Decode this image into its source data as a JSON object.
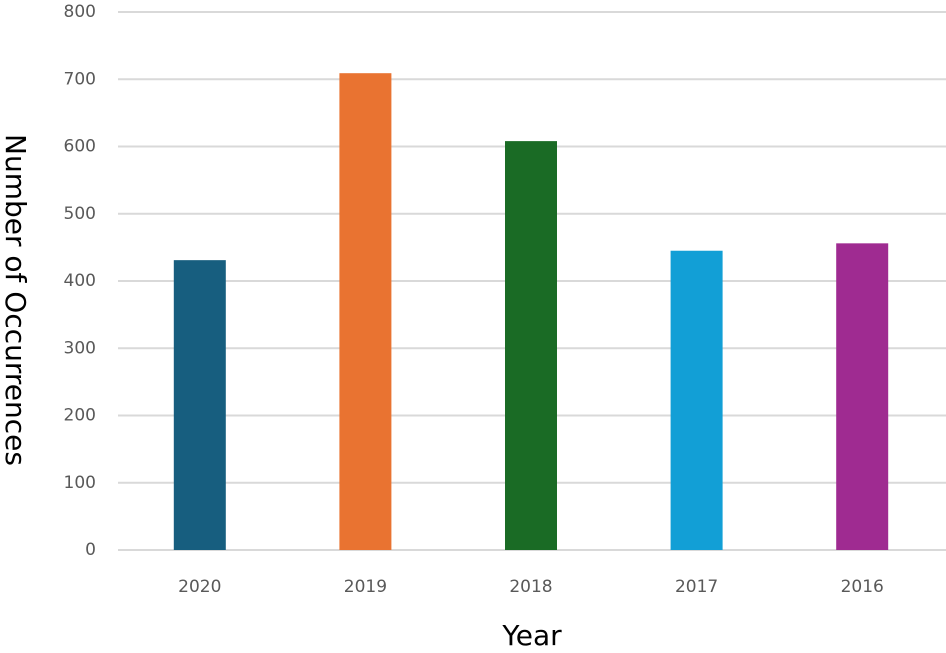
{
  "chart_data": {
    "type": "bar",
    "x_label": "Year",
    "y_label": "Number of Occurrences",
    "categories": [
      "2020",
      "2019",
      "2018",
      "2017",
      "2016"
    ],
    "values": [
      431,
      709,
      608,
      445,
      456
    ],
    "colors": [
      "#175e7f",
      "#e97331",
      "#1a6b25",
      "#129fd6",
      "#9f2b91"
    ],
    "ylim": [
      0,
      800
    ],
    "yticks": [
      0,
      100,
      200,
      300,
      400,
      500,
      600,
      700,
      800
    ],
    "grid": true
  }
}
